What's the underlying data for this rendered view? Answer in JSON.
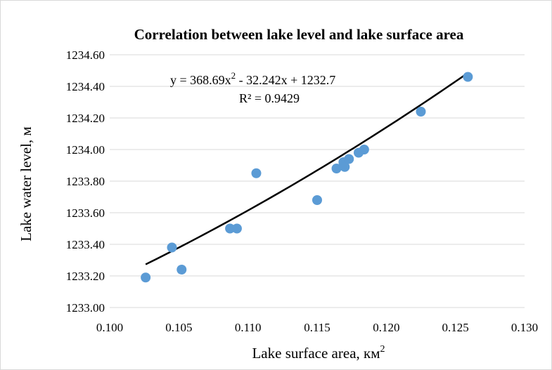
{
  "chart_data": {
    "type": "scatter",
    "title": "Correlation between lake level and lake surface area",
    "xlabel_text": "Lake surface area, км",
    "xlabel_sup": "2",
    "ylabel": "Lake water level, м",
    "xlim": [
      0.1,
      0.13
    ],
    "ylim": [
      1233.0,
      1234.6
    ],
    "x_ticks": [
      "0.100",
      "0.105",
      "0.110",
      "0.115",
      "0.120",
      "0.125",
      "0.130"
    ],
    "y_ticks": [
      "1233.00",
      "1233.20",
      "1233.40",
      "1233.60",
      "1233.80",
      "1234.00",
      "1234.20",
      "1234.40",
      "1234.60"
    ],
    "grid": true,
    "legend": "none",
    "point_color": "#5b9bd5",
    "trendline": {
      "type": "polynomial",
      "order": 2,
      "coefficients": [
        368.69,
        -32.242,
        1232.7
      ],
      "x_range": [
        0.1026,
        0.1258
      ],
      "color": "#000000",
      "equation_parts": [
        "y = 368.69x",
        "2",
        " - 32.242x + 1232.7"
      ],
      "r_squared": "R² = 0.9429"
    },
    "points": [
      {
        "x": 0.1026,
        "y": 1233.19
      },
      {
        "x": 0.1045,
        "y": 1233.38
      },
      {
        "x": 0.1052,
        "y": 1233.24
      },
      {
        "x": 0.1087,
        "y": 1233.5
      },
      {
        "x": 0.1092,
        "y": 1233.5
      },
      {
        "x": 0.1106,
        "y": 1233.85
      },
      {
        "x": 0.115,
        "y": 1233.68
      },
      {
        "x": 0.1164,
        "y": 1233.88
      },
      {
        "x": 0.1169,
        "y": 1233.92
      },
      {
        "x": 0.117,
        "y": 1233.89
      },
      {
        "x": 0.1173,
        "y": 1233.94
      },
      {
        "x": 0.118,
        "y": 1233.98
      },
      {
        "x": 0.1184,
        "y": 1234.0
      },
      {
        "x": 0.1225,
        "y": 1234.24
      },
      {
        "x": 0.1259,
        "y": 1234.46
      }
    ]
  }
}
